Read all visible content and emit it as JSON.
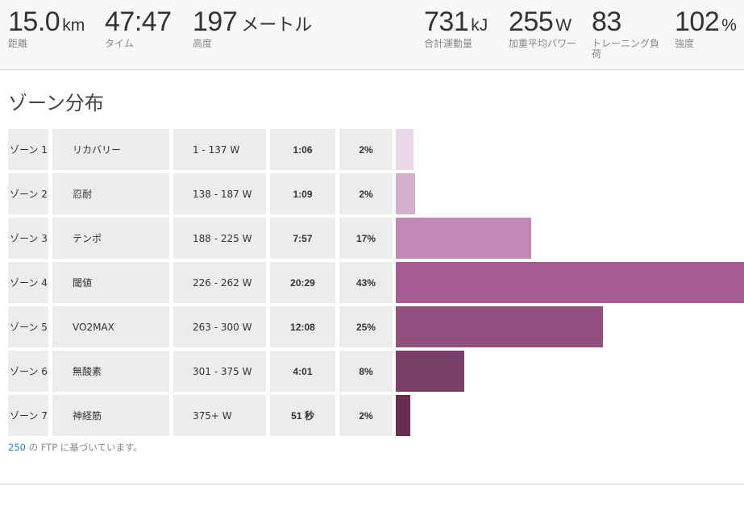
{
  "stats": {
    "distance": {
      "value": "15.0",
      "unit": "km",
      "label": "距離"
    },
    "time": {
      "value": "47:47",
      "unit": "",
      "label": "タイム"
    },
    "elevation": {
      "value": "197",
      "unit": "メートル",
      "label": "高度"
    },
    "energy": {
      "value": "731",
      "unit": "kJ",
      "label": "合計運動量"
    },
    "power": {
      "value": "255",
      "unit": "W",
      "label": "加重平均パワー"
    },
    "training_load": {
      "value": "83",
      "unit": "",
      "label": "トレーニング負荷"
    },
    "intensity": {
      "value": "102",
      "unit": "%",
      "label": "強度"
    }
  },
  "section_title": "ゾーン分布",
  "zones": [
    {
      "zone": "ゾーン 1",
      "name": "リカバリー",
      "range": "1 - 137 W",
      "time": "1:06",
      "pct_label": "2%",
      "share": 0.05,
      "color": "#ead7e6"
    },
    {
      "zone": "ゾーン 2",
      "name": "忍耐",
      "range": "138 - 187 W",
      "time": "1:09",
      "pct_label": "2%",
      "share": 0.056,
      "color": "#d5b0cd"
    },
    {
      "zone": "ゾーン 3",
      "name": "テンポ",
      "range": "188 - 225 W",
      "time": "7:57",
      "pct_label": "17%",
      "share": 0.389,
      "color": "#bf89b3"
    },
    {
      "zone": "ゾーン 4",
      "name": "閾値",
      "range": "226 - 262 W",
      "time": "20:29",
      "pct_label": "43%",
      "share": 1.0,
      "color": "#a75b94"
    },
    {
      "zone": "ゾーン 5",
      "name": "VO2MAX",
      "range": "263 - 300 W",
      "time": "12:08",
      "pct_label": "25%",
      "share": 0.595,
      "color": "#914f7e"
    },
    {
      "zone": "ゾーン 6",
      "name": "無酸素",
      "range": "301 - 375 W",
      "time": "4:01",
      "pct_label": "8%",
      "share": 0.197,
      "color": "#7a4068"
    },
    {
      "zone": "ゾーン 7",
      "name": "神経筋",
      "range": "375+ W",
      "time": "51 秒",
      "pct_label": "2%",
      "share": 0.042,
      "color": "#65304f"
    }
  ],
  "ftp_note": {
    "value": "250",
    "text": " の FTP に基づいています。"
  }
}
